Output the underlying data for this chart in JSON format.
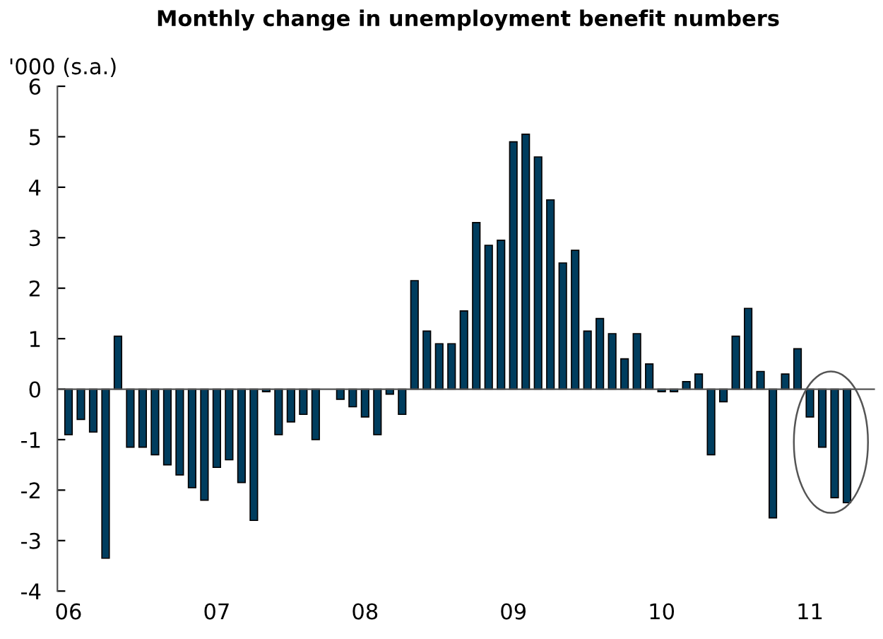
{
  "chart_data": {
    "type": "bar",
    "title": "Monthly change in unemployment benefit numbers",
    "ylabel": "'000 (s.a.)",
    "categories": [
      "06",
      null,
      null,
      null,
      null,
      null,
      null,
      null,
      null,
      null,
      null,
      null,
      "07",
      null,
      null,
      null,
      null,
      null,
      null,
      null,
      null,
      null,
      null,
      null,
      "08",
      null,
      null,
      null,
      null,
      null,
      null,
      null,
      null,
      null,
      null,
      null,
      "09",
      null,
      null,
      null,
      null,
      null,
      null,
      null,
      null,
      null,
      null,
      null,
      "10",
      null,
      null,
      null,
      null,
      null,
      null,
      null,
      null,
      null,
      null,
      null,
      "11",
      null,
      null,
      null
    ],
    "values": [
      -0.9,
      -0.6,
      -0.85,
      -3.35,
      1.05,
      -1.15,
      -1.15,
      -1.3,
      -1.5,
      -1.7,
      -1.95,
      -2.2,
      -1.55,
      -1.4,
      -1.85,
      -2.6,
      -0.05,
      -0.9,
      -0.65,
      -0.5,
      -1.0,
      null,
      -0.2,
      -0.35,
      -0.55,
      -0.9,
      -0.1,
      -0.5,
      2.15,
      1.15,
      0.9,
      0.9,
      1.55,
      3.3,
      2.85,
      2.95,
      4.9,
      5.05,
      4.6,
      3.75,
      2.5,
      2.75,
      1.15,
      1.4,
      1.1,
      0.6,
      1.1,
      0.5,
      -0.05,
      -0.05,
      0.15,
      0.3,
      -1.3,
      -0.25,
      1.05,
      1.6,
      0.35,
      -2.55,
      0.3,
      0.8,
      -0.55,
      -1.15,
      -2.15,
      -2.25
    ],
    "color": "#003d5e",
    "ylim": [
      -4,
      6
    ],
    "yticks": [
      -4,
      -3,
      -2,
      -1,
      0,
      1,
      2,
      3,
      4,
      5,
      6
    ]
  }
}
